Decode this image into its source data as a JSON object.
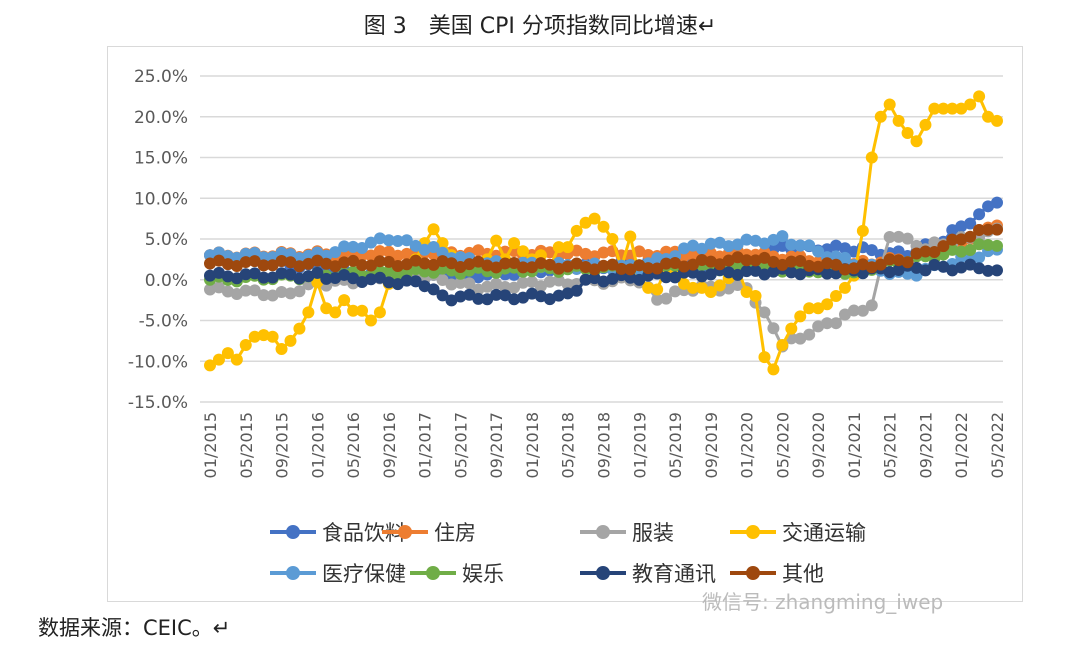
{
  "title": "图 3　美国 CPI 分项指数同比增速↵",
  "source": "数据来源：CEIC。↵",
  "watermark": "微信号: zhangming_iwep",
  "chart_data": {
    "type": "line",
    "title": "美国 CPI 分项指数同比增速",
    "ylim": [
      -15,
      25
    ],
    "yticks": [
      "25.0%",
      "20.0%",
      "15.0%",
      "10.0%",
      "5.0%",
      "0.0%",
      "-5.0%",
      "-10.0%",
      "-15.0%"
    ],
    "ytick_values": [
      25,
      20,
      15,
      10,
      5,
      0,
      -5,
      -10,
      -15
    ],
    "x_start": "01/2015",
    "x_months": 89,
    "xticks": [
      "01/2015",
      "05/2015",
      "09/2015",
      "01/2016",
      "05/2016",
      "09/2016",
      "01/2017",
      "05/2017",
      "09/2017",
      "01/2018",
      "05/2018",
      "09/2018",
      "01/2019",
      "05/2019",
      "09/2019",
      "01/2020",
      "05/2020",
      "09/2020",
      "01/2021",
      "05/2021",
      "09/2021",
      "01/2022",
      "05/2022"
    ],
    "grid": true,
    "legend": "bottom",
    "series": [
      {
        "name": "食品饮料",
        "color": "#4472C4",
        "anchors": [
          [
            0,
            3
          ],
          [
            8,
            2
          ],
          [
            12,
            1.5
          ],
          [
            20,
            0
          ],
          [
            30,
            0.5
          ],
          [
            40,
            1.5
          ],
          [
            48,
            2
          ],
          [
            60,
            1.8
          ],
          [
            64,
            4
          ],
          [
            72,
            3.8
          ],
          [
            78,
            3
          ],
          [
            82,
            5
          ],
          [
            86,
            8
          ],
          [
            88,
            9.8
          ]
        ]
      },
      {
        "name": "住房",
        "color": "#ED7D31",
        "anchors": [
          [
            0,
            3
          ],
          [
            24,
            3.3
          ],
          [
            48,
            3.2
          ],
          [
            60,
            3.2
          ],
          [
            72,
            2
          ],
          [
            78,
            2.5
          ],
          [
            84,
            4.5
          ],
          [
            88,
            7
          ]
        ]
      },
      {
        "name": "服装",
        "color": "#A5A5A5",
        "anchors": [
          [
            0,
            -1.2
          ],
          [
            8,
            -1.8
          ],
          [
            12,
            -0.5
          ],
          [
            24,
            0.5
          ],
          [
            30,
            -1
          ],
          [
            36,
            -0.5
          ],
          [
            48,
            0
          ],
          [
            50,
            -2.5
          ],
          [
            54,
            -1
          ],
          [
            60,
            -1
          ],
          [
            63,
            -6
          ],
          [
            64,
            -8
          ],
          [
            70,
            -5
          ],
          [
            74,
            -3
          ],
          [
            76,
            5.5
          ],
          [
            80,
            4
          ],
          [
            84,
            5
          ],
          [
            88,
            6
          ]
        ]
      },
      {
        "name": "交通运输",
        "color": "#FFC000",
        "values": [
          -10.5,
          -9.8,
          -9,
          -9.8,
          -8,
          -7,
          -6.8,
          -7,
          -8.5,
          -7.5,
          -6,
          -4,
          -0.3,
          -3.5,
          -4,
          -2.5,
          -3.8,
          -3.8,
          -5,
          -4,
          -0.5,
          1,
          1.5,
          2.5,
          4.5,
          6.2,
          4.5,
          3,
          2.5,
          1.5,
          2,
          2.5,
          4.8,
          2.5,
          4.5,
          3.5,
          2.5,
          3,
          1.5,
          4,
          4,
          6,
          7,
          7.5,
          6.5,
          5,
          1.5,
          5.3,
          0.5,
          -1,
          -1.2,
          1.5,
          1,
          -0.5,
          -1,
          -1,
          -1.5,
          -0.7,
          0.2,
          1.3,
          -1.5,
          -2,
          -9.5,
          -11,
          -8,
          -6,
          -4.5,
          -3.5,
          -3.5,
          -3,
          -2,
          -1,
          0.5,
          6,
          15,
          20,
          21.5,
          19.5,
          18,
          17,
          19,
          21,
          21,
          21,
          21,
          21.5,
          22.5,
          20,
          19.5
        ]
      },
      {
        "name": "医疗保健",
        "color": "#5B9BD5",
        "anchors": [
          [
            0,
            3
          ],
          [
            12,
            3
          ],
          [
            20,
            5
          ],
          [
            24,
            4
          ],
          [
            30,
            2
          ],
          [
            48,
            1.5
          ],
          [
            54,
            4
          ],
          [
            64,
            5
          ],
          [
            72,
            2
          ],
          [
            78,
            0.5
          ],
          [
            84,
            2.5
          ],
          [
            88,
            3.5
          ]
        ]
      },
      {
        "name": "娱乐",
        "color": "#70AD47",
        "anchors": [
          [
            0,
            0
          ],
          [
            24,
            1
          ],
          [
            48,
            1.5
          ],
          [
            60,
            1.5
          ],
          [
            72,
            1
          ],
          [
            76,
            2
          ],
          [
            84,
            3.5
          ],
          [
            88,
            4.5
          ]
        ]
      },
      {
        "name": "教育通讯",
        "color": "#264478",
        "anchors": [
          [
            0,
            0.5
          ],
          [
            12,
            0.5
          ],
          [
            24,
            -0.5
          ],
          [
            26,
            -2.2
          ],
          [
            40,
            -2
          ],
          [
            42,
            0
          ],
          [
            60,
            1
          ],
          [
            72,
            1
          ],
          [
            80,
            1.5
          ],
          [
            86,
            1.5
          ],
          [
            88,
            0.8
          ]
        ]
      },
      {
        "name": "其他",
        "color": "#9E480E",
        "anchors": [
          [
            0,
            2
          ],
          [
            24,
            2
          ],
          [
            48,
            1.5
          ],
          [
            60,
            2.5
          ],
          [
            72,
            1.5
          ],
          [
            78,
            2.5
          ],
          [
            84,
            5
          ],
          [
            88,
            6.5
          ]
        ]
      }
    ]
  }
}
